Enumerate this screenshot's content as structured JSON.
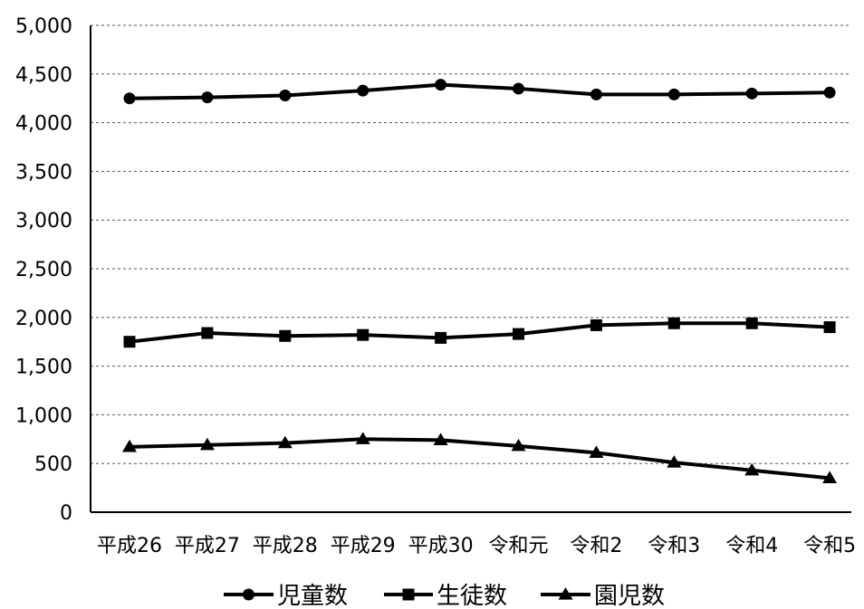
{
  "chart_data": {
    "type": "line",
    "categories": [
      "平成26",
      "平成27",
      "平成28",
      "平成29",
      "平成30",
      "令和元",
      "令和2",
      "令和3",
      "令和4",
      "令和5"
    ],
    "series": [
      {
        "name": "児童数",
        "marker": "circle",
        "values": [
          4250,
          4260,
          4280,
          4330,
          4390,
          4350,
          4290,
          4290,
          4300,
          4310
        ]
      },
      {
        "name": "生徒数",
        "marker": "square",
        "values": [
          1750,
          1840,
          1810,
          1820,
          1790,
          1830,
          1920,
          1940,
          1940,
          1900
        ]
      },
      {
        "name": "園児数",
        "marker": "triangle",
        "values": [
          670,
          690,
          710,
          750,
          740,
          680,
          610,
          510,
          430,
          350
        ]
      }
    ],
    "yticks": [
      "0",
      "500",
      "1,000",
      "1,500",
      "2,000",
      "2,500",
      "3,000",
      "3,500",
      "4,000",
      "4,500",
      "5,000"
    ],
    "ylim": [
      0,
      5000
    ],
    "grid": true,
    "legend_position": "bottom",
    "color": "#000000"
  }
}
